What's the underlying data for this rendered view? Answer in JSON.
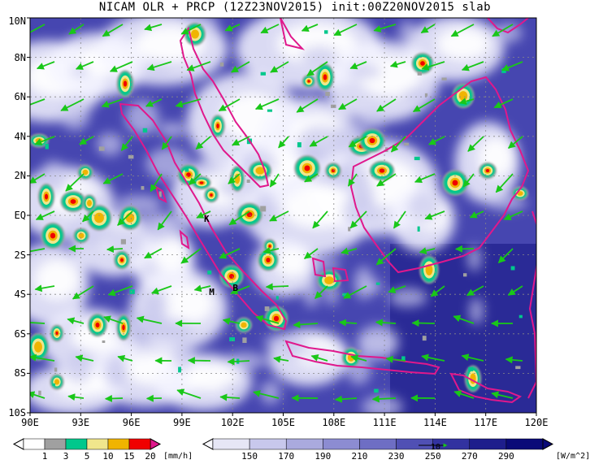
{
  "title": "NICAM OLR + PRCP (12Z23NOV2015) init:00Z20NOV2015 slab",
  "map": {
    "lat_labels": [
      "10N",
      "8N",
      "6N",
      "4N",
      "2N",
      "EQ",
      "2S",
      "4S",
      "6S",
      "8S",
      "10S"
    ],
    "lon_labels": [
      "90E",
      "93E",
      "96E",
      "99E",
      "102E",
      "105E",
      "108E",
      "111E",
      "114E",
      "117E",
      "120E"
    ],
    "markers": [
      {
        "label": "K",
        "lon": 100.5,
        "lat": -0.2
      },
      {
        "label": "M",
        "lon": 100.8,
        "lat": -3.9
      },
      {
        "label": "B",
        "lon": 102.2,
        "lat": -3.7
      }
    ],
    "colors": {
      "coastline": "#e0188c",
      "wind_arrow": "#19c719",
      "grid": "#888888"
    }
  },
  "prcp_bar": {
    "labels": [
      "1",
      "3",
      "5",
      "10",
      "15",
      "20"
    ],
    "unit": "[mm/h]",
    "colors": [
      "#a0a0a0",
      "#00c88c",
      "#f0e68c",
      "#f0b400",
      "#f00000",
      "#e0188c"
    ]
  },
  "olr_bar": {
    "labels": [
      "150",
      "170",
      "190",
      "210",
      "230",
      "250",
      "270",
      "290"
    ],
    "unit": "[W/m^2]",
    "colors": [
      "#fafaff",
      "#e6e6f5",
      "#c8c8ec",
      "#aaaade",
      "#8c8cd2",
      "#6e6ec4",
      "#5050b4",
      "#3232a0",
      "#1e1e8c",
      "#0a0a78"
    ],
    "vector_ref": "10"
  }
}
